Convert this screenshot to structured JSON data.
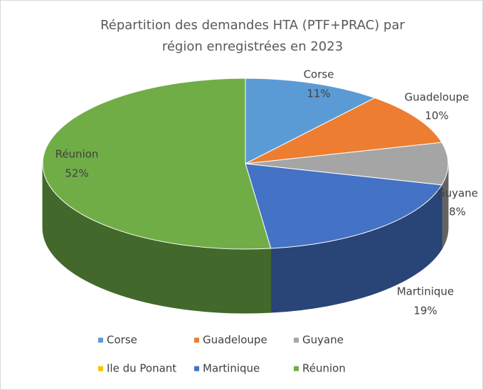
{
  "chart_data": {
    "type": "pie",
    "title": [
      "Répartition des demandes HTA (PTF+PRAC) par",
      "région enregistrées en 2023"
    ],
    "categories": [
      "Corse",
      "Guadeloupe",
      "Guyane",
      "Ile du Ponant",
      "Martinique",
      "Réunion"
    ],
    "values": [
      11,
      10,
      8,
      0,
      19,
      52
    ],
    "value_labels": [
      "11%",
      "10%",
      "8%",
      null,
      "19%",
      "52%"
    ],
    "colors": [
      "#5b9bd5",
      "#ed7d31",
      "#a5a5a5",
      "#ffc000",
      "#4472c4",
      "#70ad47"
    ],
    "legend": "bottom"
  }
}
